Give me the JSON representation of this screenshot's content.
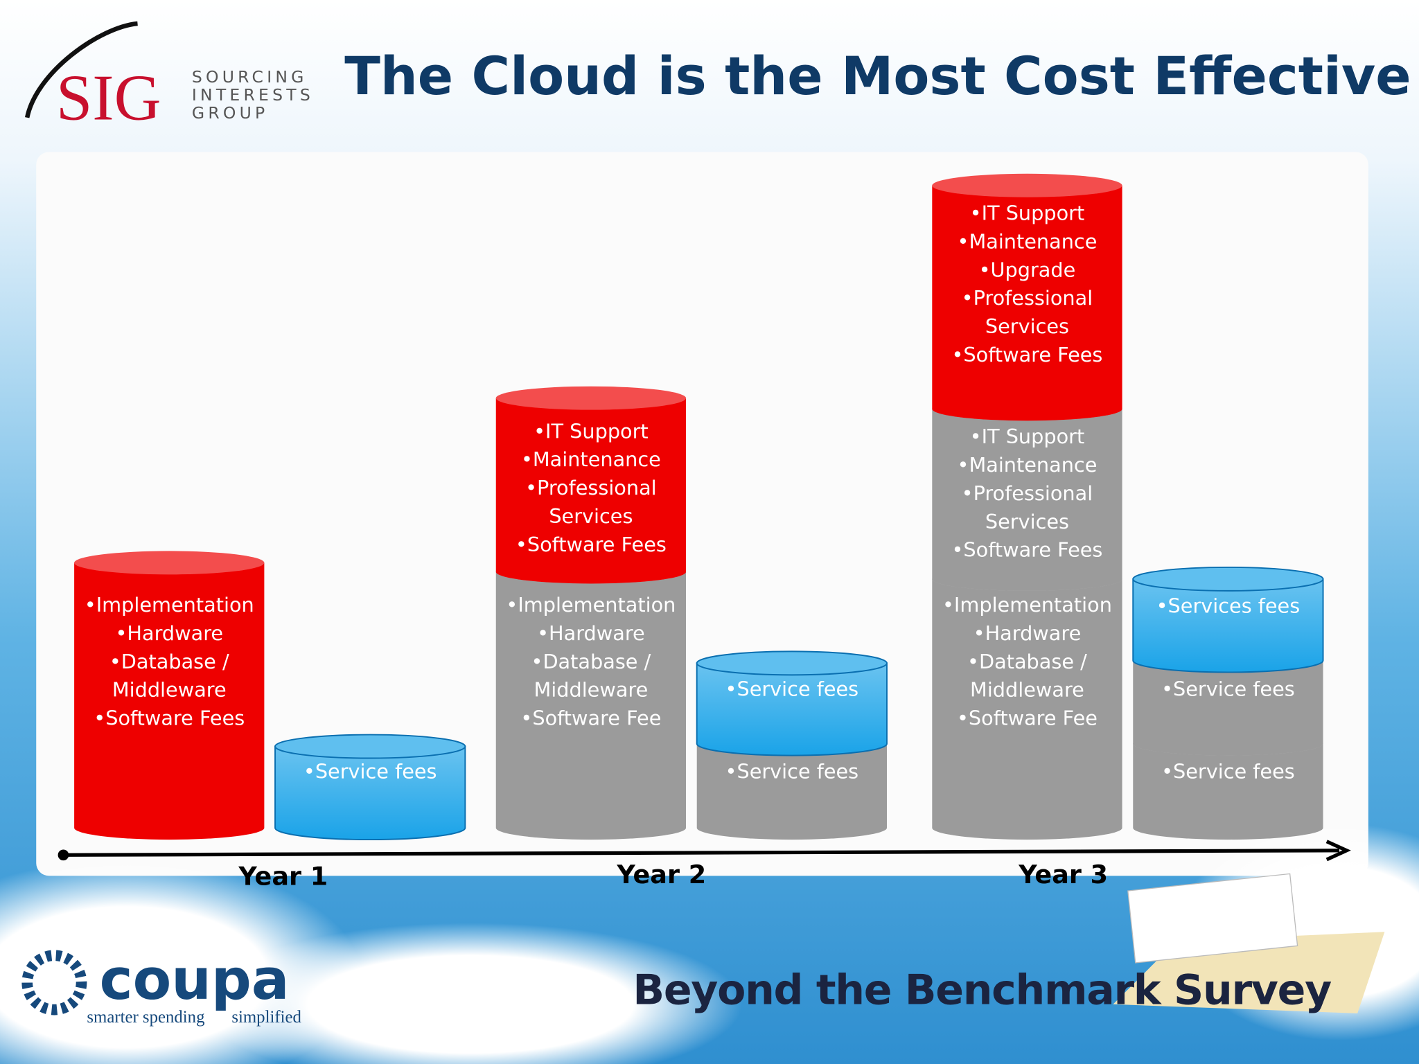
{
  "title": "The Cloud is the Most Cost Effective",
  "logo_sig": {
    "mark": "SIG",
    "lines": [
      "SOURCING",
      "INTERESTS",
      "GROUP"
    ]
  },
  "logo_coupa": {
    "name": "coupa",
    "tagline_1": "smarter spending",
    "tagline_2": "simplified"
  },
  "footer": "Beyond the Benchmark Survey",
  "years": [
    {
      "label": "Year 1",
      "on_premise": [
        {
          "color": "#ee0000",
          "items": [
            "•Implementation",
            "•Hardware",
            "•Database /",
            "Middleware",
            "•Software Fees"
          ]
        }
      ],
      "cloud": [
        {
          "color": "#1aa3e8",
          "items": [
            "•Service fees"
          ]
        }
      ]
    },
    {
      "label": "Year 2",
      "on_premise": [
        {
          "color": "#9b9b9b",
          "items": [
            "•Implementation",
            "•Hardware",
            "•Database /",
            "Middleware",
            "•Software Fee"
          ]
        },
        {
          "color": "#ee0000",
          "items": [
            "•IT Support",
            "•Maintenance",
            "•Professional",
            "Services",
            "•Software Fees"
          ]
        }
      ],
      "cloud": [
        {
          "color": "#9b9b9b",
          "items": [
            "•Service fees"
          ]
        },
        {
          "color": "#1aa3e8",
          "items": [
            "•Service fees"
          ]
        }
      ]
    },
    {
      "label": "Year 3",
      "on_premise": [
        {
          "color": "#9b9b9b",
          "items": [
            "•Implementation",
            "•Hardware",
            "•Database /",
            "Middleware",
            "•Software Fee"
          ]
        },
        {
          "color": "#9b9b9b",
          "items": [
            "•IT Support",
            "•Maintenance",
            "•Professional",
            "Services",
            "•Software Fees"
          ]
        },
        {
          "color": "#ee0000",
          "items": [
            "•IT Support",
            "•Maintenance",
            "•Upgrade",
            "•Professional",
            "Services",
            "•Software Fees"
          ]
        }
      ],
      "cloud": [
        {
          "color": "#9b9b9b",
          "items": [
            "•Service fees"
          ]
        },
        {
          "color": "#9b9b9b",
          "items": [
            "•Service fees"
          ]
        },
        {
          "color": "#1aa3e8",
          "items": [
            "•Services fees"
          ]
        }
      ]
    }
  ]
}
